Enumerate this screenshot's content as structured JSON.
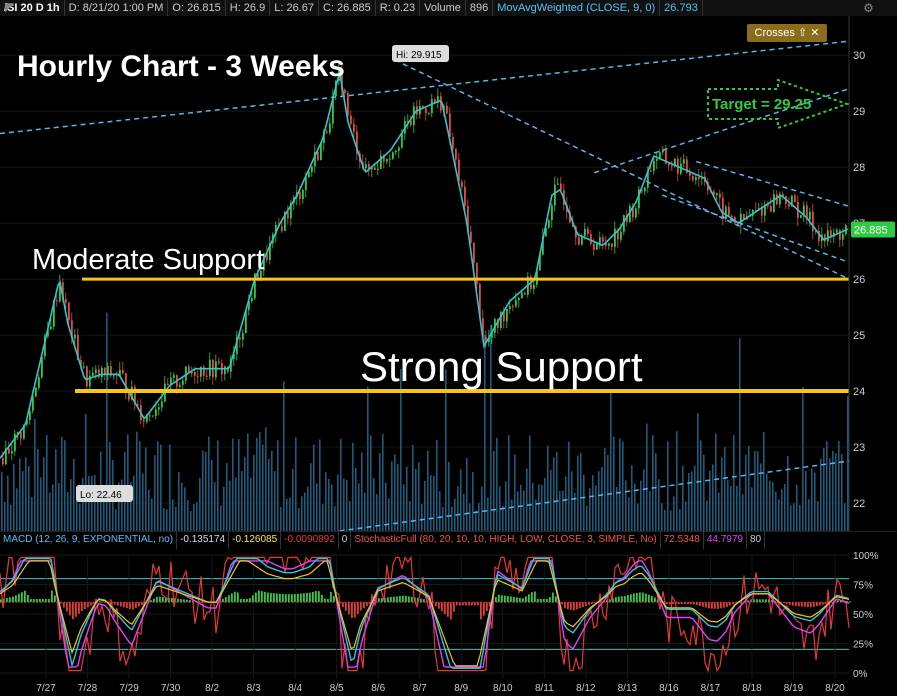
{
  "header": {
    "symbol": "/SI 20 D 1h",
    "date": "D: 8/21/20 1:00 PM",
    "open": "O: 26.815",
    "high": "H: 26.9",
    "low": "L: 26.67",
    "close": "C: 26.885",
    "range": "R: 0.23",
    "volume_label": "Volume",
    "volume_value": "896",
    "study_label": "MovAvgWeighted (CLOSE, 9, 0)",
    "study_value": "26.793"
  },
  "crosses_button": "Crosses ⇧ ✕",
  "annotations": {
    "title": "Hourly Chart - 3 Weeks",
    "moderate": "Moderate Support",
    "strong": "Strong Support",
    "target": "Target = 29.25",
    "hi": "Hi: 29.915",
    "lo": "Lo: 22.46",
    "last_price": "26.885"
  },
  "oscillator_header": {
    "macd_label": "MACD (12, 26, 9, EXPONENTIAL, no)",
    "macd_v1": "-0.135174",
    "macd_v2": "-0.126085",
    "macd_v3": "-0.0090892",
    "macd_v4": "0",
    "stoch_label": "StochasticFull (80, 20, 10, 10, HIGH, LOW, CLOSE, 3, SIMPLE, No)",
    "stoch_v1": "72.5348",
    "stoch_v2": "44.7979",
    "stoch_v3": "80"
  },
  "colors": {
    "price_line": "#31c5d6",
    "support": "#f5c518",
    "trend": "#5ab4e8",
    "target": "#2ecc40",
    "up_candle": "#2ecc40",
    "down_candle": "#e74c3c",
    "volume": "#1e5a7a"
  },
  "chart_data": {
    "type": "line",
    "ylim": [
      21.5,
      30.7
    ],
    "yticks": [
      22,
      23,
      24,
      25,
      26,
      27,
      28,
      29,
      30
    ],
    "date_labels": [
      "7/27",
      "7/28",
      "7/29",
      "7/30",
      "8/2",
      "8/3",
      "8/4",
      "8/5",
      "8/6",
      "8/7",
      "8/9",
      "8/10",
      "8/11",
      "8/12",
      "8/13",
      "8/16",
      "8/17",
      "8/18",
      "8/19",
      "8/20"
    ],
    "price_series": {
      "name": "MovAvgWeighted (CLOSE, 9, 0)",
      "x": [
        0,
        3,
        5,
        7,
        8,
        10,
        12,
        14,
        17,
        20,
        23,
        27,
        30,
        33,
        35,
        38,
        40,
        41,
        43,
        46,
        49,
        52,
        55,
        57,
        60,
        63,
        65,
        66,
        68,
        71,
        73,
        75,
        77,
        80,
        83,
        85,
        87,
        90,
        92,
        95,
        97,
        100
      ],
      "y": [
        22.8,
        23.4,
        24.7,
        26.0,
        25.2,
        24.2,
        24.3,
        24.3,
        23.5,
        24.1,
        24.4,
        24.4,
        26.0,
        27.0,
        27.5,
        28.5,
        29.7,
        28.8,
        27.9,
        28.3,
        29.0,
        29.2,
        27.0,
        24.8,
        25.6,
        26.0,
        27.5,
        27.6,
        26.8,
        26.6,
        26.9,
        27.4,
        28.2,
        28.0,
        27.8,
        27.2,
        27.0,
        27.3,
        27.5,
        27.1,
        26.7,
        26.9
      ]
    },
    "support_levels": [
      {
        "name": "Moderate Support",
        "value": 26.0
      },
      {
        "name": "Strong Support",
        "value": 24.0
      }
    ],
    "high": 29.915,
    "low": 22.46,
    "last": 26.885,
    "target": 29.25,
    "osc_yticks": [
      "100%",
      "75%",
      "50%",
      "25%",
      "0%"
    ]
  }
}
